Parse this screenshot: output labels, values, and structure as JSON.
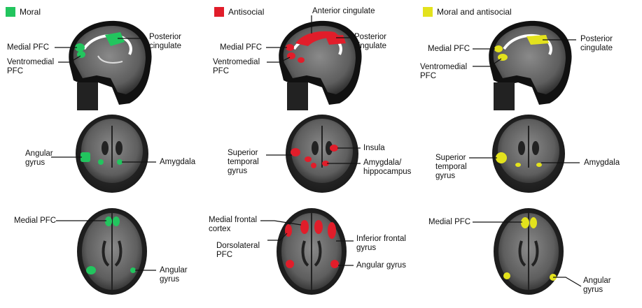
{
  "legend": {
    "moral": {
      "label": "Moral",
      "color": "#22c55e"
    },
    "antisocial": {
      "label": "Antisocial",
      "color": "#e11d2a"
    },
    "both": {
      "label": "Moral and antisocial",
      "color": "#e3e21d"
    }
  },
  "panels": {
    "moral_sagittal": {
      "posterior_cingulate": [
        "Posterior",
        "cingulate"
      ],
      "medial_pfc": "Medial PFC",
      "ventromedial_pfc": [
        "Ventromedial",
        "PFC"
      ]
    },
    "antisocial_sagittal": {
      "anterior_cingulate": "Anterior cingulate",
      "posterior_cingulate": [
        "Posterior",
        "cingulate"
      ],
      "medial_pfc": "Medial PFC",
      "ventromedial_pfc": [
        "Ventromedial",
        "PFC"
      ]
    },
    "both_sagittal": {
      "posterior_cingulate": [
        "Posterior",
        "cingulate"
      ],
      "medial_pfc": "Medial PFC",
      "ventromedial_pfc": [
        "Ventromedial",
        "PFC"
      ]
    },
    "moral_coronal": {
      "angular_gyrus": [
        "Angular",
        "gyrus"
      ],
      "amygdala": "Amygdala"
    },
    "antisocial_coronal": {
      "superior_temporal_gyrus": [
        "Superior",
        "temporal",
        "gyrus"
      ],
      "insula": "Insula",
      "amygdala_hippocampus": [
        "Amygdala/",
        "hippocampus"
      ]
    },
    "both_coronal": {
      "superior_temporal_gyrus": [
        "Superior",
        "temporal",
        "gyrus"
      ],
      "amygdala": "Amygdala"
    },
    "moral_axial": {
      "medial_pfc": "Medial PFC",
      "angular_gyrus": [
        "Angular",
        "gyrus"
      ]
    },
    "antisocial_axial": {
      "medial_frontal_cortex": [
        "Medial frontal",
        "cortex"
      ],
      "dorsolateral_pfc": [
        "Dorsolateral",
        "PFC"
      ],
      "inferior_frontal_gyrus": [
        "Inferior frontal",
        "gyrus"
      ],
      "angular_gyrus": "Angular gyrus"
    },
    "both_axial": {
      "medial_pfc": "Medial PFC",
      "angular_gyrus": [
        "Angular",
        "gyrus"
      ]
    }
  }
}
